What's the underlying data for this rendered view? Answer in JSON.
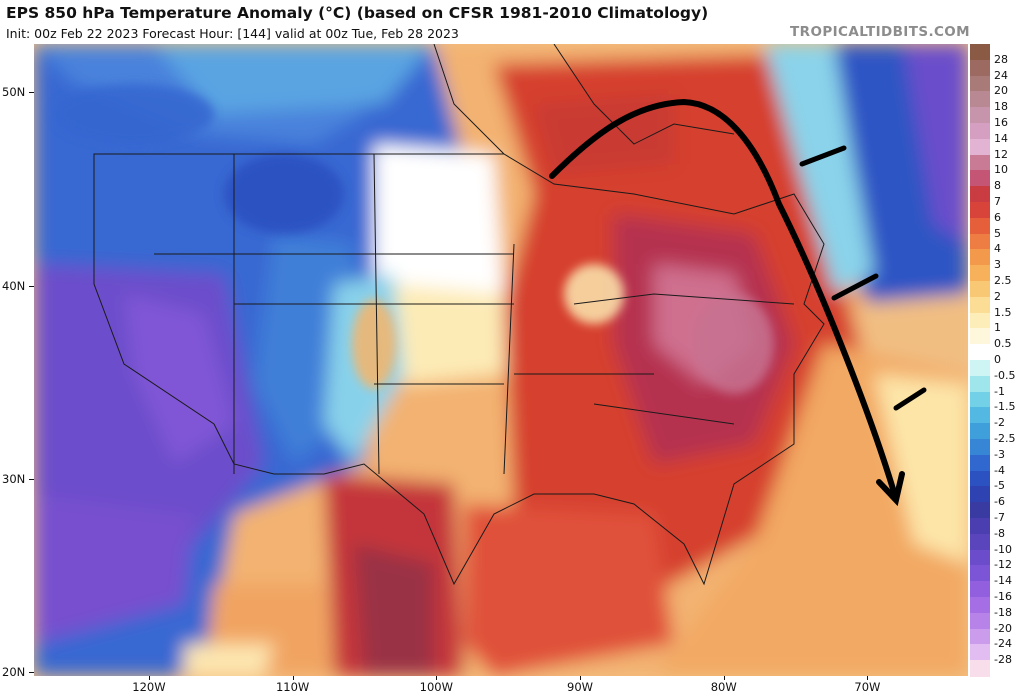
{
  "header": {
    "title": "EPS 850 hPa Temperature Anomaly (°C) (based on CFSR 1981-2010 Climatology)",
    "subtitle": "Init: 00z Feb 22 2023   Forecast Hour: [144]   valid at 00z Tue, Feb 28 2023",
    "brand": "TROPICALTIDBITS.COM"
  },
  "map": {
    "region": "North America",
    "lat_labels": [
      {
        "label": "50N",
        "value": 50
      },
      {
        "label": "40N",
        "value": 40
      },
      {
        "label": "30N",
        "value": 30
      },
      {
        "label": "20N",
        "value": 20
      }
    ],
    "lon_labels": [
      {
        "label": "120W",
        "value": -120
      },
      {
        "label": "110W",
        "value": -110
      },
      {
        "label": "100W",
        "value": -100
      },
      {
        "label": "90W",
        "value": -90
      },
      {
        "label": "80W",
        "value": -80
      },
      {
        "label": "70W",
        "value": -70
      }
    ],
    "annotation": "hand-drawn black arrow arcing over the Great Lakes toward the southeast, with front dashes off the northeast coast",
    "colors": {
      "cold_deep": "#7a4ecf",
      "cold": "#2d5bd6",
      "cool": "#79c9ea",
      "neutral": "#ffffff",
      "warm": "#f5c889",
      "warmer": "#e8653a",
      "hot": "#c62f2f",
      "hottest": "#d56b8c"
    }
  },
  "colorbar": {
    "labels": [
      "28",
      "24",
      "20",
      "18",
      "16",
      "14",
      "12",
      "10",
      "8",
      "7",
      "6",
      "5",
      "4",
      "3",
      "2.5",
      "2",
      "1.5",
      "1",
      "0.5",
      "0",
      "-0.5",
      "-1",
      "-1.5",
      "-2",
      "-2.5",
      "-3",
      "-4",
      "-5",
      "-6",
      "-7",
      "-8",
      "-10",
      "-12",
      "-14",
      "-16",
      "-18",
      "-20",
      "-24",
      "-28"
    ],
    "colors": [
      "#8a5a44",
      "#9c6a60",
      "#a87a78",
      "#b88992",
      "#c694ab",
      "#d49fc0",
      "#e3b3d3",
      "#c97b95",
      "#c45575",
      "#c93c41",
      "#d9443a",
      "#e45f3a",
      "#ee7d43",
      "#f2994c",
      "#f6b15a",
      "#f9c874",
      "#fbdd95",
      "#fdeeb9",
      "#fff7dc",
      "#ffffff",
      "#cff4f4",
      "#9fe6ec",
      "#72d1e6",
      "#53b9e2",
      "#3f9fdb",
      "#3786d6",
      "#3068cf",
      "#2c52c2",
      "#2f42b1",
      "#3a3aa3",
      "#4a3eb0",
      "#5a45bd",
      "#6b4ccb",
      "#7c55d6",
      "#9260de",
      "#a66ee4",
      "#b883e8",
      "#cc9cec",
      "#e1bdf2",
      "#f7deea"
    ]
  }
}
